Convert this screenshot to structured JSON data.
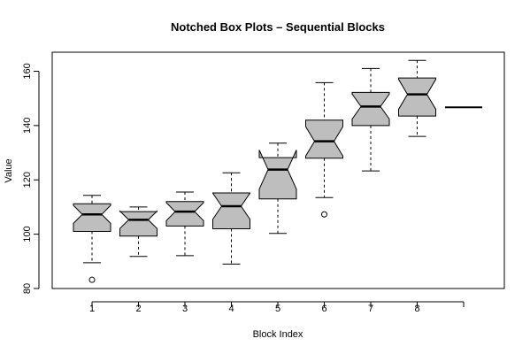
{
  "chart_data": {
    "type": "box",
    "notched": true,
    "title": "Notched Box Plots – Sequential Blocks",
    "xlabel": "Block Index",
    "ylabel": "Value",
    "ylim": [
      80,
      167
    ],
    "yticks": [
      80,
      100,
      120,
      140,
      160
    ],
    "grid": false,
    "legend": "none",
    "box_fill": "#bebebe",
    "categories": [
      "1",
      "2",
      "3",
      "4",
      "5",
      "6",
      "7",
      "8",
      ""
    ],
    "boxes": [
      {
        "label": "1",
        "whisker_low": 89.5,
        "q1": 101.0,
        "median": 107.3,
        "q3": 111.2,
        "whisker_high": 114.3,
        "notch_low": 104.0,
        "notch_high": 110.6,
        "outliers": [
          83.2
        ]
      },
      {
        "label": "2",
        "whisker_low": 91.8,
        "q1": 99.3,
        "median": 105.3,
        "q3": 108.3,
        "whisker_high": 110.0,
        "notch_low": 102.1,
        "notch_high": 108.5,
        "outliers": []
      },
      {
        "label": "3",
        "whisker_low": 92.1,
        "q1": 103.0,
        "median": 108.3,
        "q3": 112.0,
        "whisker_high": 115.5,
        "notch_low": 105.0,
        "notch_high": 111.6,
        "outliers": []
      },
      {
        "label": "4",
        "whisker_low": 89.0,
        "q1": 102.0,
        "median": 110.3,
        "q3": 115.2,
        "whisker_high": 122.6,
        "notch_low": 105.5,
        "notch_high": 115.1,
        "outliers": []
      },
      {
        "label": "5",
        "whisker_low": 100.3,
        "q1": 113.0,
        "median": 123.8,
        "q3": 128.2,
        "whisker_high": 133.5,
        "notch_low": 116.6,
        "notch_high": 131.0,
        "outliers": []
      },
      {
        "label": "6",
        "whisker_low": 113.5,
        "q1": 128.0,
        "median": 134.2,
        "q3": 142.0,
        "whisker_high": 155.8,
        "notch_low": 128.8,
        "notch_high": 139.6,
        "outliers": [
          107.3
        ]
      },
      {
        "label": "7",
        "whisker_low": 123.3,
        "q1": 140.0,
        "median": 147.0,
        "q3": 152.2,
        "whisker_high": 161.0,
        "notch_low": 142.4,
        "notch_high": 151.6,
        "outliers": []
      },
      {
        "label": "8",
        "whisker_low": 136.0,
        "q1": 143.5,
        "median": 151.5,
        "q3": 157.5,
        "whisker_high": 164.0,
        "notch_low": 146.0,
        "notch_high": 157.0,
        "outliers": []
      },
      {
        "label": "",
        "whisker_low": 146.7,
        "q1": 146.7,
        "median": 146.7,
        "q3": 146.7,
        "whisker_high": 146.7,
        "notch_low": 146.7,
        "notch_high": 146.7,
        "outliers": []
      }
    ]
  }
}
